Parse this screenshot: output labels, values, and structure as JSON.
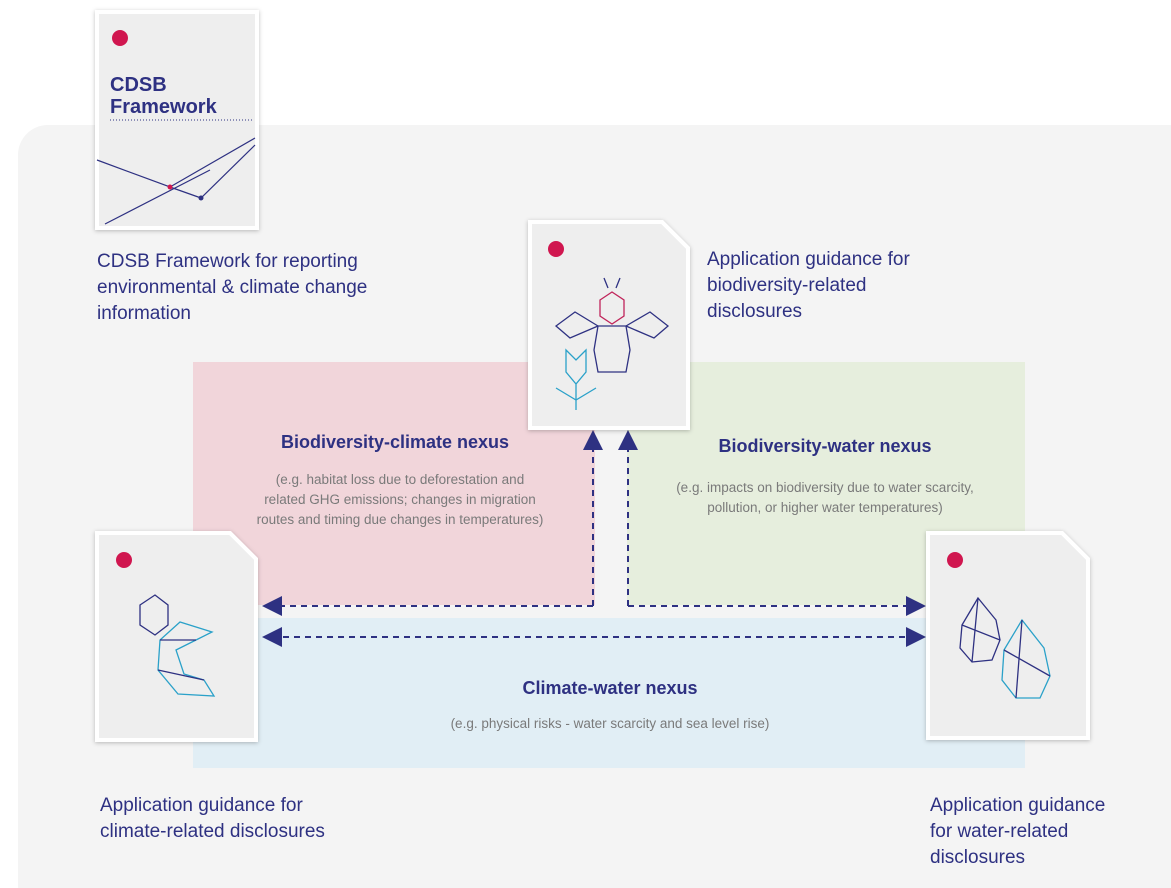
{
  "cover": {
    "title": "CDSB Framework"
  },
  "framework": {
    "caption": "CDSB Framework for reporting environmental & climate change information"
  },
  "biodiversity_doc": {
    "caption": "Application guidance for biodiversity-related disclosures"
  },
  "climate_doc": {
    "caption": "Application guidance for climate-related disclosures"
  },
  "water_doc": {
    "caption": "Application guidance for water-related disclosures"
  },
  "nexus": [
    {
      "title": "Biodiversity-climate nexus",
      "description": "(e.g. habitat loss due to deforestation and related GHG emissions; changes in migration routes and timing due changes in temperatures)"
    },
    {
      "title": "Biodiversity-water nexus",
      "description": "(e.g. impacts on biodiversity due to water scarcity, pollution, or higher water temperatures)"
    },
    {
      "title": "Climate-water nexus",
      "description": "(e.g. physical risks - water scarcity and sea level rise)"
    }
  ]
}
